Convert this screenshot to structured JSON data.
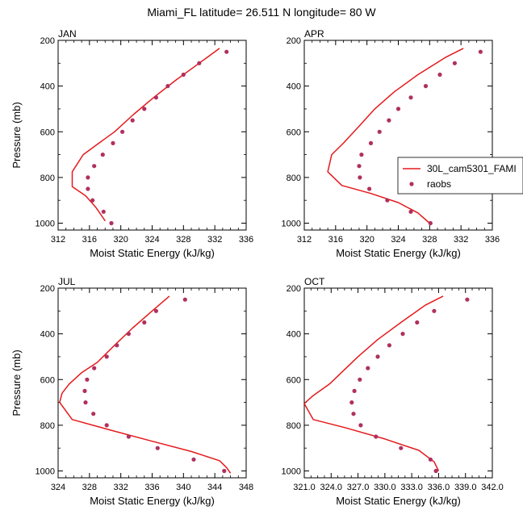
{
  "title": "Miami_FL  latitude= 26.511 N longitude= 80 W",
  "legend": {
    "line_label": "30L_cam5301_FAMI",
    "points_label": "raobs"
  },
  "colors": {
    "model_line": "#e41a1c",
    "raobs_points": "#b03060",
    "axes": "#000000"
  },
  "chart_data": [
    {
      "type": "line",
      "panel": "JAN",
      "title": "JAN",
      "xlabel": "Moist Static Energy (kJ/kg)",
      "ylabel": "Pressure (mb)",
      "xlim": [
        312,
        336
      ],
      "ylim": [
        200,
        1030
      ],
      "y_inverted": true,
      "x_ticks": [
        312,
        316,
        320,
        324,
        328,
        332,
        336
      ],
      "x_tick_labels": [
        "312",
        "316",
        "320",
        "324",
        "328",
        "332",
        "336"
      ],
      "y_ticks": [
        200,
        400,
        600,
        800,
        1000
      ],
      "y_tick_labels": [
        "200",
        "400",
        "600",
        "800",
        "1000"
      ],
      "series": [
        {
          "name": "30L_cam5301_FAMI",
          "kind": "line",
          "points": [
            [
              332.6,
              235
            ],
            [
              330.0,
              300
            ],
            [
              327.0,
              375
            ],
            [
              324.2,
              450
            ],
            [
              321.6,
              525
            ],
            [
              319.2,
              600
            ],
            [
              317.2,
              650
            ],
            [
              315.2,
              700
            ],
            [
              313.8,
              775
            ],
            [
              313.8,
              840
            ],
            [
              315.5,
              880
            ],
            [
              316.8,
              930
            ],
            [
              318.0,
              990
            ]
          ]
        },
        {
          "name": "raobs",
          "kind": "scatter",
          "points": [
            [
              333.5,
              250
            ],
            [
              330.0,
              300
            ],
            [
              328.0,
              350
            ],
            [
              326.0,
              400
            ],
            [
              324.5,
              450
            ],
            [
              323.0,
              500
            ],
            [
              321.5,
              550
            ],
            [
              320.2,
              600
            ],
            [
              319.0,
              650
            ],
            [
              317.7,
              700
            ],
            [
              316.6,
              750
            ],
            [
              315.8,
              800
            ],
            [
              315.8,
              850
            ],
            [
              316.4,
              900
            ],
            [
              317.8,
              950
            ],
            [
              318.8,
              1000
            ]
          ]
        }
      ]
    },
    {
      "type": "line",
      "panel": "APR",
      "title": "APR",
      "xlabel": "Moist Static Energy (kJ/kg)",
      "ylabel": "",
      "xlim": [
        312,
        336
      ],
      "ylim": [
        200,
        1030
      ],
      "y_inverted": true,
      "x_ticks": [
        312,
        316,
        320,
        324,
        328,
        332,
        336
      ],
      "x_tick_labels": [
        "312",
        "316",
        "320",
        "324",
        "328",
        "332",
        "336"
      ],
      "y_ticks": [
        200,
        400,
        600,
        800,
        1000
      ],
      "y_tick_labels": [
        "200",
        "400",
        "600",
        "800",
        "1000"
      ],
      "series": [
        {
          "name": "30L_cam5301_FAMI",
          "kind": "line",
          "points": [
            [
              332.3,
              235
            ],
            [
              330.0,
              275
            ],
            [
              326.5,
              350
            ],
            [
              323.5,
              425
            ],
            [
              321.0,
              500
            ],
            [
              319.0,
              575
            ],
            [
              317.0,
              650
            ],
            [
              315.5,
              700
            ],
            [
              315.0,
              775
            ],
            [
              316.8,
              835
            ],
            [
              320.5,
              870
            ],
            [
              324.0,
              910
            ],
            [
              326.5,
              955
            ],
            [
              328.0,
              1000
            ]
          ]
        },
        {
          "name": "raobs",
          "kind": "scatter",
          "points": [
            [
              334.5,
              250
            ],
            [
              331.2,
              300
            ],
            [
              329.3,
              350
            ],
            [
              327.5,
              400
            ],
            [
              325.6,
              450
            ],
            [
              324.0,
              500
            ],
            [
              322.8,
              550
            ],
            [
              321.6,
              600
            ],
            [
              320.5,
              650
            ],
            [
              319.3,
              700
            ],
            [
              319.0,
              750
            ],
            [
              319.1,
              800
            ],
            [
              320.3,
              850
            ],
            [
              322.6,
              900
            ],
            [
              325.6,
              950
            ],
            [
              328.1,
              1000
            ]
          ]
        }
      ]
    },
    {
      "type": "line",
      "panel": "JUL",
      "title": "JUL",
      "xlabel": "Moist Static Energy (kJ/kg)",
      "ylabel": "Pressure (mb)",
      "xlim": [
        324,
        348
      ],
      "ylim": [
        200,
        1030
      ],
      "y_inverted": true,
      "x_ticks": [
        324,
        328,
        332,
        336,
        340,
        344,
        348
      ],
      "x_tick_labels": [
        "324",
        "328",
        "332",
        "336",
        "340",
        "344",
        "348"
      ],
      "y_ticks": [
        200,
        400,
        600,
        800,
        1000
      ],
      "y_tick_labels": [
        "200",
        "400",
        "600",
        "800",
        "1000"
      ],
      "series": [
        {
          "name": "30L_cam5301_FAMI",
          "kind": "line",
          "points": [
            [
              338.2,
              235
            ],
            [
              336.0,
              300
            ],
            [
              333.5,
              375
            ],
            [
              331.2,
              450
            ],
            [
              329.0,
              525
            ],
            [
              327.0,
              570
            ],
            [
              325.4,
              620
            ],
            [
              324.5,
              660
            ],
            [
              324.2,
              700
            ],
            [
              325.8,
              775
            ],
            [
              330.0,
              815
            ],
            [
              336.0,
              870
            ],
            [
              341.0,
              915
            ],
            [
              344.6,
              955
            ],
            [
              345.5,
              985
            ],
            [
              346.0,
              1010
            ]
          ]
        },
        {
          "name": "raobs",
          "kind": "scatter",
          "points": [
            [
              340.2,
              250
            ],
            [
              336.5,
              300
            ],
            [
              335.0,
              350
            ],
            [
              333.0,
              400
            ],
            [
              331.5,
              450
            ],
            [
              330.2,
              500
            ],
            [
              328.6,
              550
            ],
            [
              327.7,
              600
            ],
            [
              327.4,
              650
            ],
            [
              327.5,
              700
            ],
            [
              328.5,
              750
            ],
            [
              330.2,
              800
            ],
            [
              333.0,
              850
            ],
            [
              336.7,
              900
            ],
            [
              341.3,
              950
            ],
            [
              345.2,
              1000
            ]
          ]
        }
      ]
    },
    {
      "type": "line",
      "panel": "OCT",
      "title": "OCT",
      "xlabel": "Moist Static Energy (kJ/kg)",
      "ylabel": "",
      "xlim": [
        321,
        342
      ],
      "ylim": [
        200,
        1030
      ],
      "y_inverted": true,
      "x_ticks": [
        321,
        324,
        327,
        330,
        333,
        336,
        339,
        342
      ],
      "x_tick_labels": [
        "321.0",
        "324.0",
        "327.0",
        "330.0",
        "333.0",
        "336.0",
        "339.0",
        "342.0"
      ],
      "y_ticks": [
        200,
        400,
        600,
        800,
        1000
      ],
      "y_tick_labels": [
        "200",
        "400",
        "600",
        "800",
        "1000"
      ],
      "series": [
        {
          "name": "30L_cam5301_FAMI",
          "kind": "line",
          "points": [
            [
              336.5,
              235
            ],
            [
              334.5,
              275
            ],
            [
              331.8,
              350
            ],
            [
              329.2,
              425
            ],
            [
              327.0,
              500
            ],
            [
              325.0,
              575
            ],
            [
              323.8,
              620
            ],
            [
              322.0,
              670
            ],
            [
              321.0,
              705
            ],
            [
              322.0,
              775
            ],
            [
              325.5,
              810
            ],
            [
              330.0,
              860
            ],
            [
              333.8,
              910
            ],
            [
              335.5,
              960
            ],
            [
              336.0,
              1000
            ]
          ]
        },
        {
          "name": "raobs",
          "kind": "scatter",
          "points": [
            [
              339.2,
              250
            ],
            [
              335.5,
              300
            ],
            [
              333.6,
              350
            ],
            [
              332.0,
              400
            ],
            [
              330.5,
              450
            ],
            [
              329.2,
              500
            ],
            [
              328.1,
              550
            ],
            [
              327.2,
              600
            ],
            [
              326.6,
              650
            ],
            [
              326.3,
              700
            ],
            [
              326.5,
              750
            ],
            [
              327.3,
              800
            ],
            [
              329.0,
              850
            ],
            [
              331.8,
              900
            ],
            [
              335.1,
              950
            ],
            [
              335.7,
              1000
            ]
          ]
        }
      ]
    }
  ]
}
